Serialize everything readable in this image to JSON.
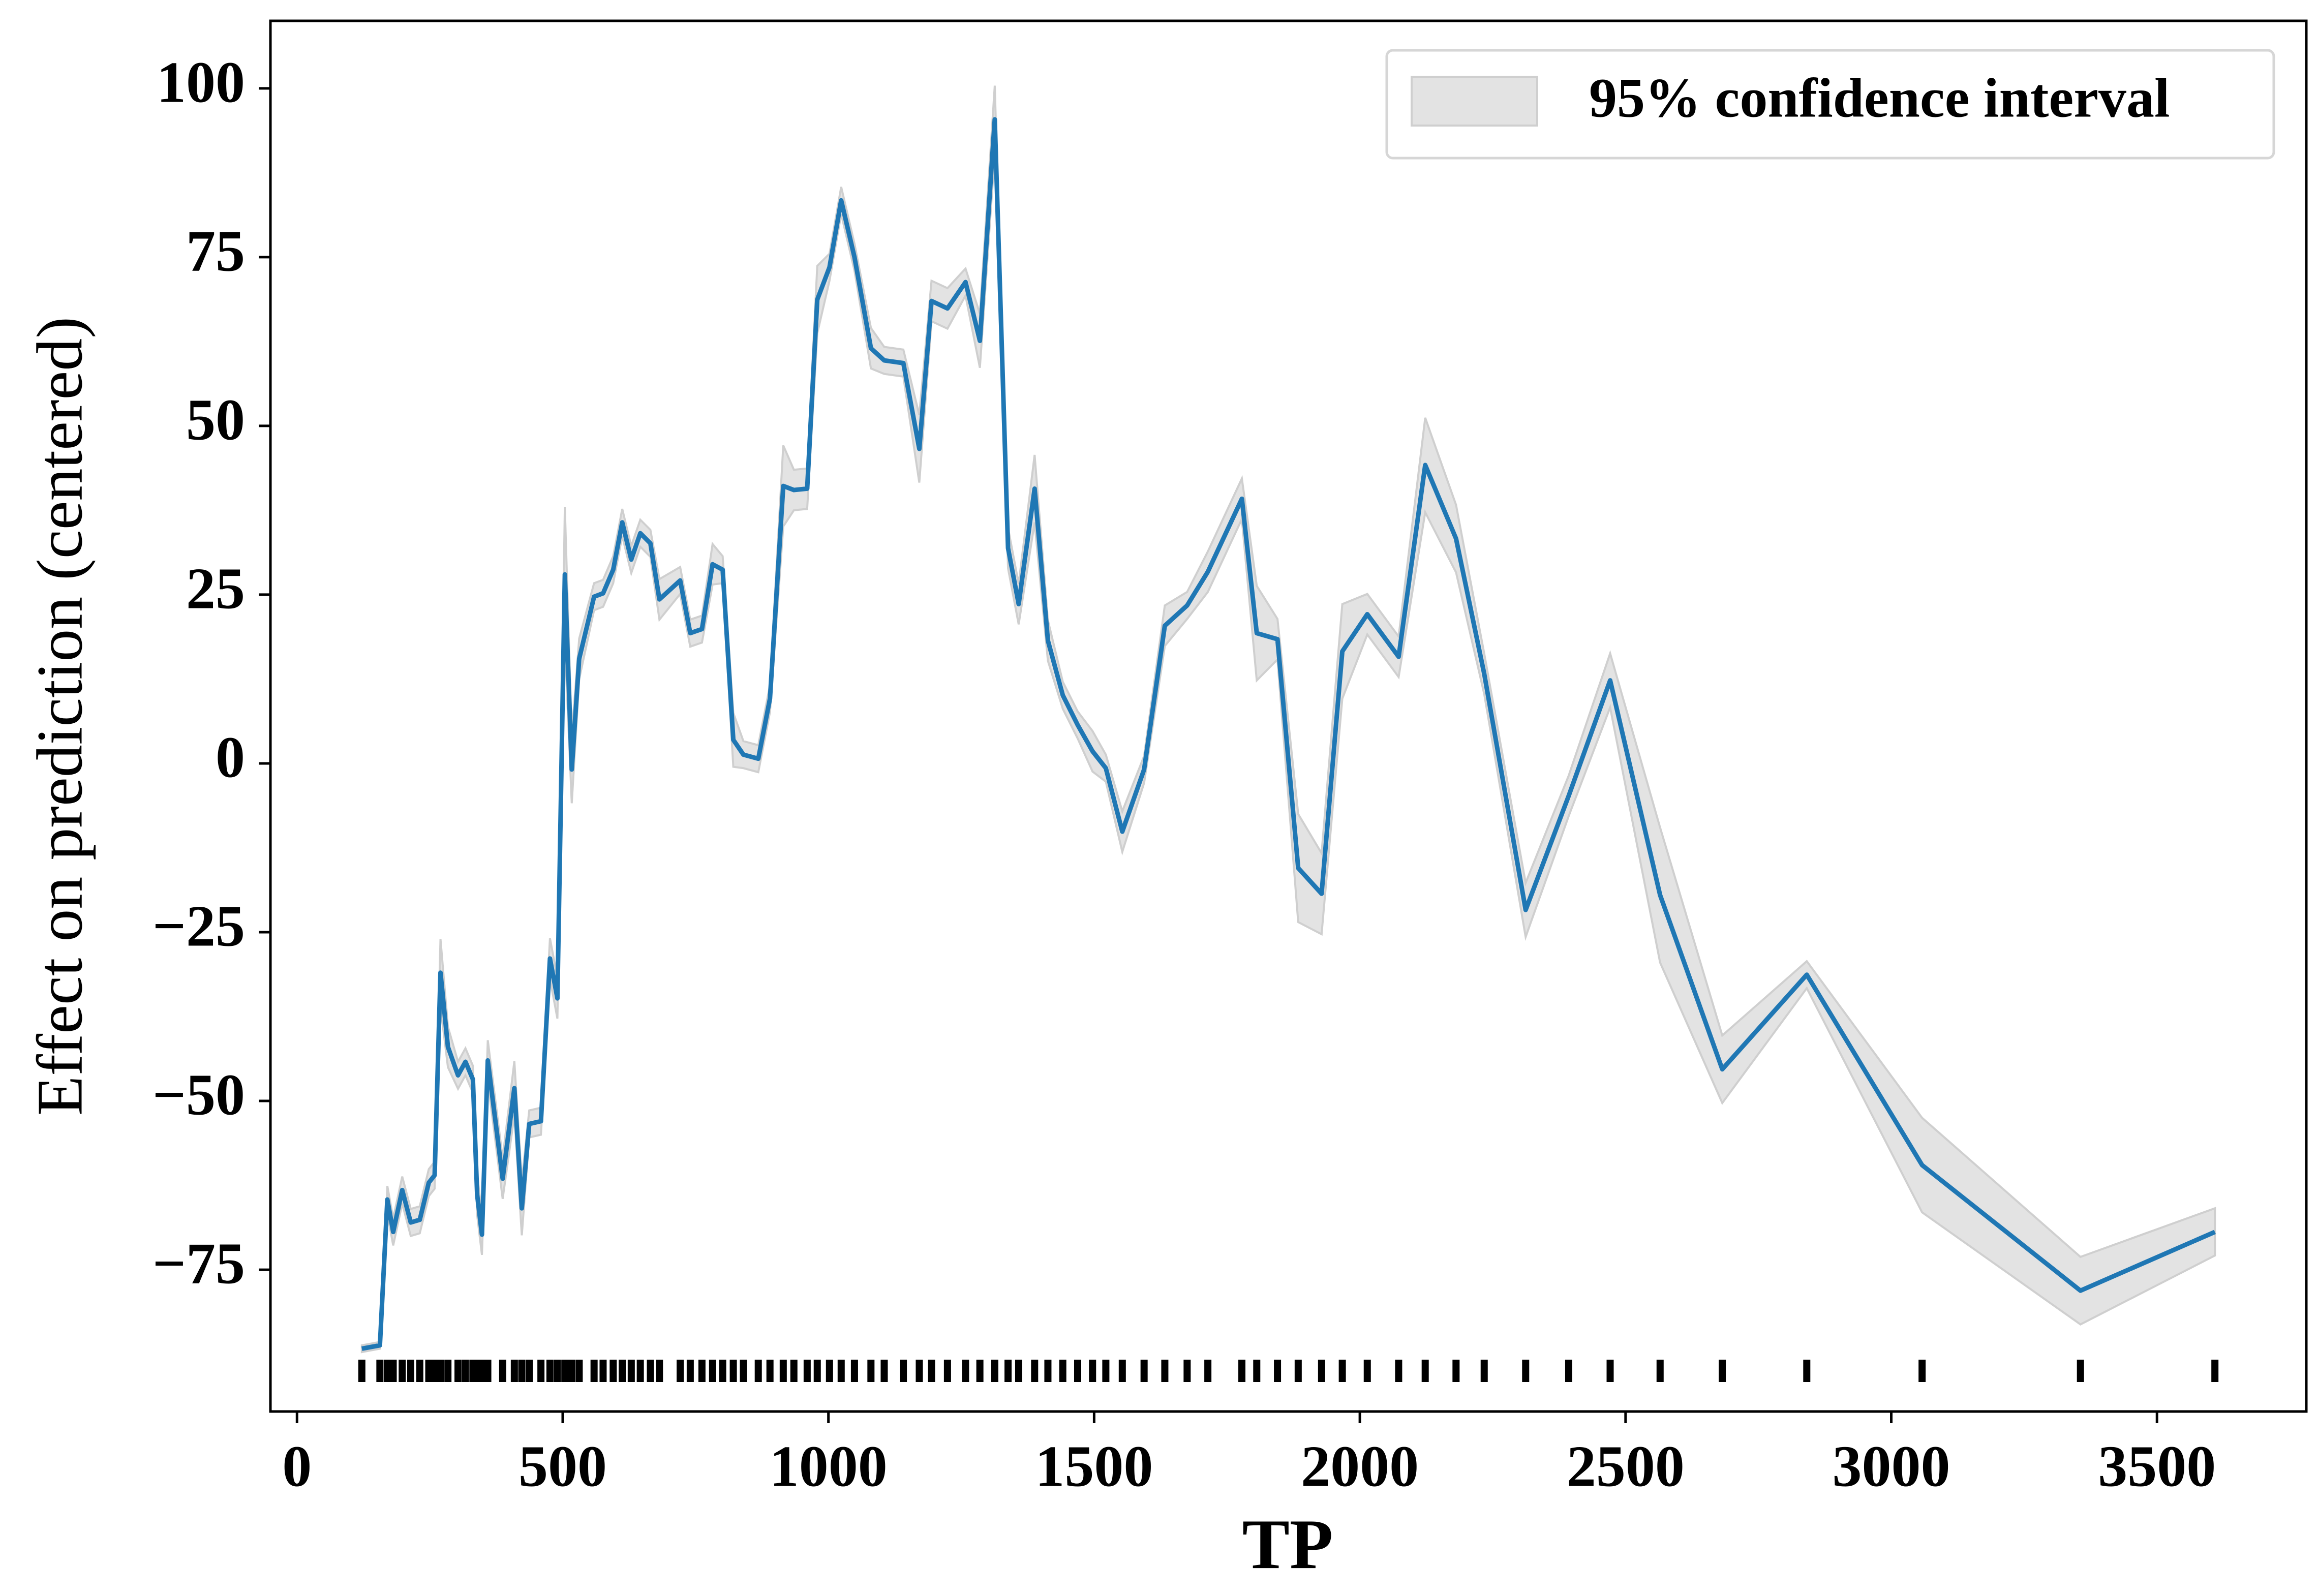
{
  "chart_data": {
    "type": "line",
    "xlabel": "TP",
    "ylabel": "Effect on prediction (centered)",
    "x": [
      122,
      156,
      170,
      181,
      198,
      214,
      231,
      248,
      259,
      270,
      284,
      303,
      317,
      331,
      339,
      348,
      359,
      387,
      409,
      423,
      437,
      459,
      476,
      490,
      504,
      517,
      531,
      559,
      576,
      595,
      612,
      629,
      646,
      665,
      682,
      721,
      740,
      762,
      782,
      801,
      821,
      840,
      868,
      890,
      915,
      935,
      960,
      979,
      1002,
      1024,
      1049,
      1080,
      1105,
      1141,
      1171,
      1194,
      1224,
      1258,
      1285,
      1313,
      1338,
      1358,
      1388,
      1413,
      1441,
      1469,
      1497,
      1522,
      1553,
      1594,
      1633,
      1675,
      1714,
      1778,
      1806,
      1845,
      1884,
      1928,
      1967,
      2014,
      2073,
      2123,
      2181,
      2234,
      2312,
      2393,
      2471,
      2565,
      2682,
      2841,
      3058,
      3356,
      3609
    ],
    "values": [
      -86.7,
      -86.2,
      -64.6,
      -69.4,
      -63.2,
      -68,
      -67.6,
      -62.1,
      -61,
      -31,
      -42,
      -46.2,
      -44.2,
      -46.8,
      -63.9,
      -69.8,
      -44,
      -61.5,
      -48.1,
      -65.9,
      -53.4,
      -53,
      -28.9,
      -34.8,
      28,
      -0.9,
      15.5,
      24.7,
      25.2,
      28.7,
      35.7,
      30.2,
      34.1,
      32.6,
      24.3,
      27.1,
      19.3,
      19.9,
      29.5,
      28.7,
      3.5,
      1.3,
      0.7,
      9.6,
      41.1,
      40.5,
      40.7,
      68.7,
      73.5,
      83.4,
      75,
      61.5,
      59.7,
      59.3,
      46.6,
      68.5,
      67.4,
      71.3,
      62.6,
      95.4,
      31.9,
      23.6,
      40.7,
      18.2,
      10.1,
      5.7,
      1.8,
      -0.7,
      -10.1,
      -0.9,
      20.4,
      23.4,
      28.4,
      39.2,
      19.3,
      18.4,
      -15.5,
      -19.3,
      16.6,
      22.1,
      15.8,
      44.2,
      33.3,
      13.3,
      -21.7,
      -4.8,
      12.3,
      -19.5,
      -45.3,
      -31.3,
      -59.5,
      -78.1,
      -69.4
    ],
    "errors": [
      0.5,
      0.5,
      2,
      2,
      2,
      2,
      2,
      2,
      2,
      5,
      3,
      2,
      2,
      2,
      3,
      3,
      3,
      3,
      4,
      4,
      2,
      2,
      3,
      3,
      10,
      5,
      3,
      2,
      2,
      2,
      2,
      2,
      2,
      2,
      3,
      2,
      2,
      2,
      3,
      2,
      4,
      2,
      2,
      2,
      6,
      3,
      3,
      5,
      2,
      2,
      2,
      3,
      2,
      2,
      5,
      3,
      3,
      2,
      4,
      5,
      3,
      3,
      5,
      3,
      2,
      2,
      3,
      2,
      3,
      2,
      3,
      2,
      3,
      3,
      7,
      3,
      8,
      6,
      7,
      3,
      3,
      7,
      5,
      3,
      4,
      3,
      4,
      10,
      5,
      2,
      7,
      5,
      3.5
    ],
    "color": "#1f77b4",
    "band": {
      "name": "95% confidence interval",
      "color": "#e3e3e3"
    },
    "rug_color": "#000000",
    "legend": "upper right",
    "xlim": [
      -50,
      3781
    ],
    "ylim": [
      -96,
      110
    ],
    "xticks": [
      0,
      500,
      1000,
      1500,
      2000,
      2500,
      3000,
      3500
    ],
    "yticks": [
      {
        "value": -75,
        "label": "−75"
      },
      {
        "value": -50,
        "label": "−50"
      },
      {
        "value": -25,
        "label": "−25"
      },
      0,
      25,
      50,
      75,
      100
    ]
  }
}
